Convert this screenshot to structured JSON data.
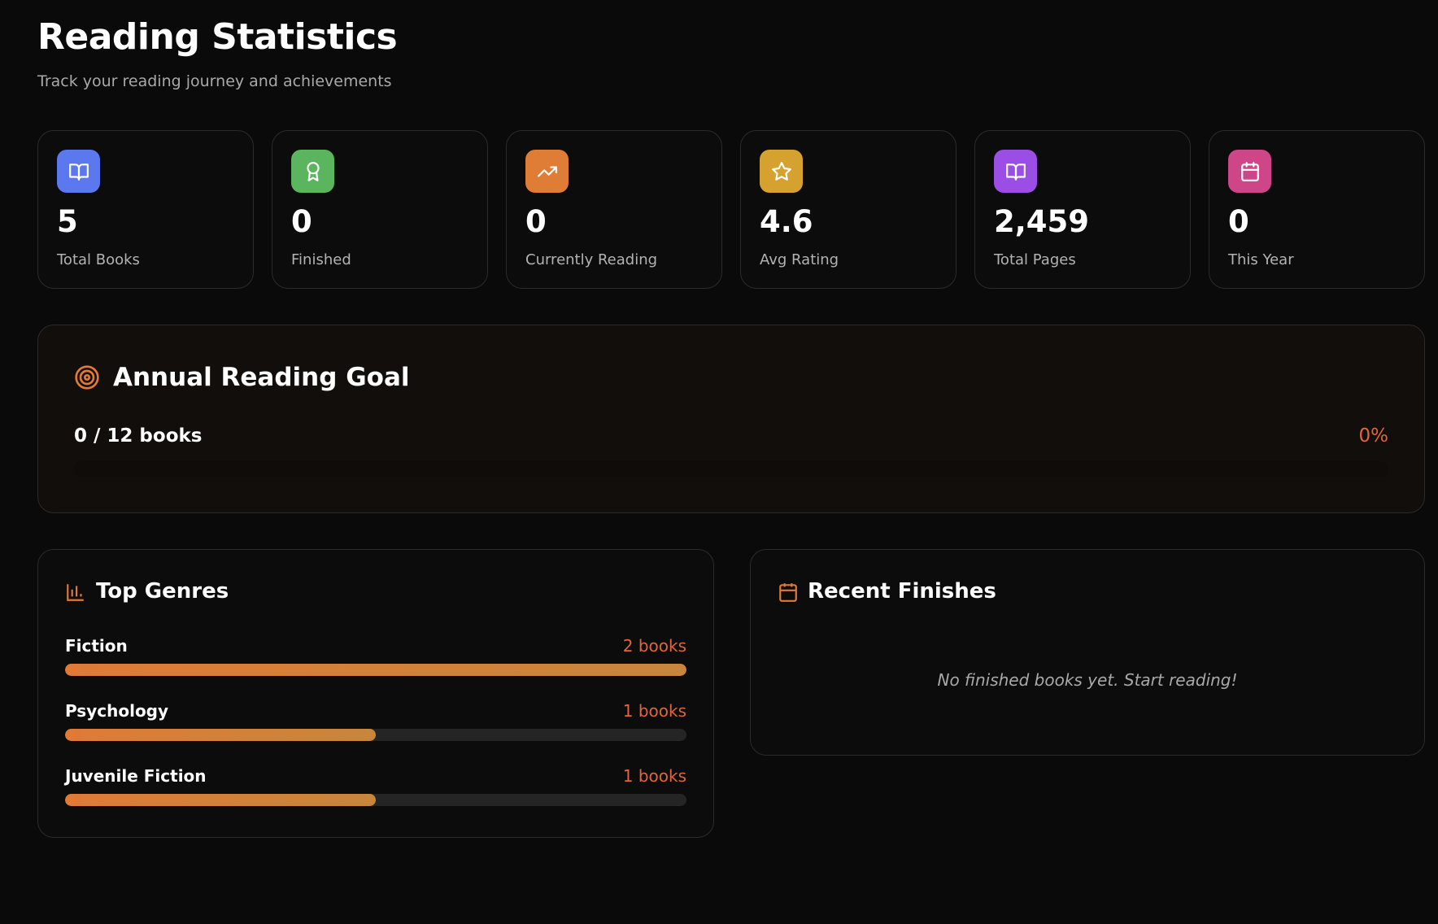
{
  "header": {
    "title": "Reading Statistics",
    "subtitle": "Track your reading journey and achievements"
  },
  "stats": [
    {
      "value": 5,
      "label": "Total Books",
      "color": "#5b78ee"
    },
    {
      "value": 0,
      "label": "Finished",
      "color": "#5bb45e"
    },
    {
      "value": 0,
      "label": "Currently Reading",
      "color": "#df7d36"
    },
    {
      "value": 4.6,
      "label": "Avg Rating",
      "color": "#d6a22f"
    },
    {
      "value": "2,459",
      "label": "Total Pages",
      "color": "#9a4ee6"
    },
    {
      "value": 0,
      "label": "This Year",
      "color": "#cf4688"
    }
  ],
  "goal": {
    "title": "Annual Reading Goal",
    "progress_text": "0 / 12 books",
    "percent": 0,
    "percent_label": "0%"
  },
  "genres": {
    "title": "Top Genres",
    "items": [
      {
        "name": "Fiction",
        "count": 2,
        "count_label": "2 books"
      },
      {
        "name": "Psychology",
        "count": 1,
        "count_label": "1 books"
      },
      {
        "name": "Juvenile Fiction",
        "count": 1,
        "count_label": "1 books"
      }
    ]
  },
  "recent": {
    "title": "Recent Finishes",
    "empty_message": "No finished books yet. Start reading!"
  }
}
